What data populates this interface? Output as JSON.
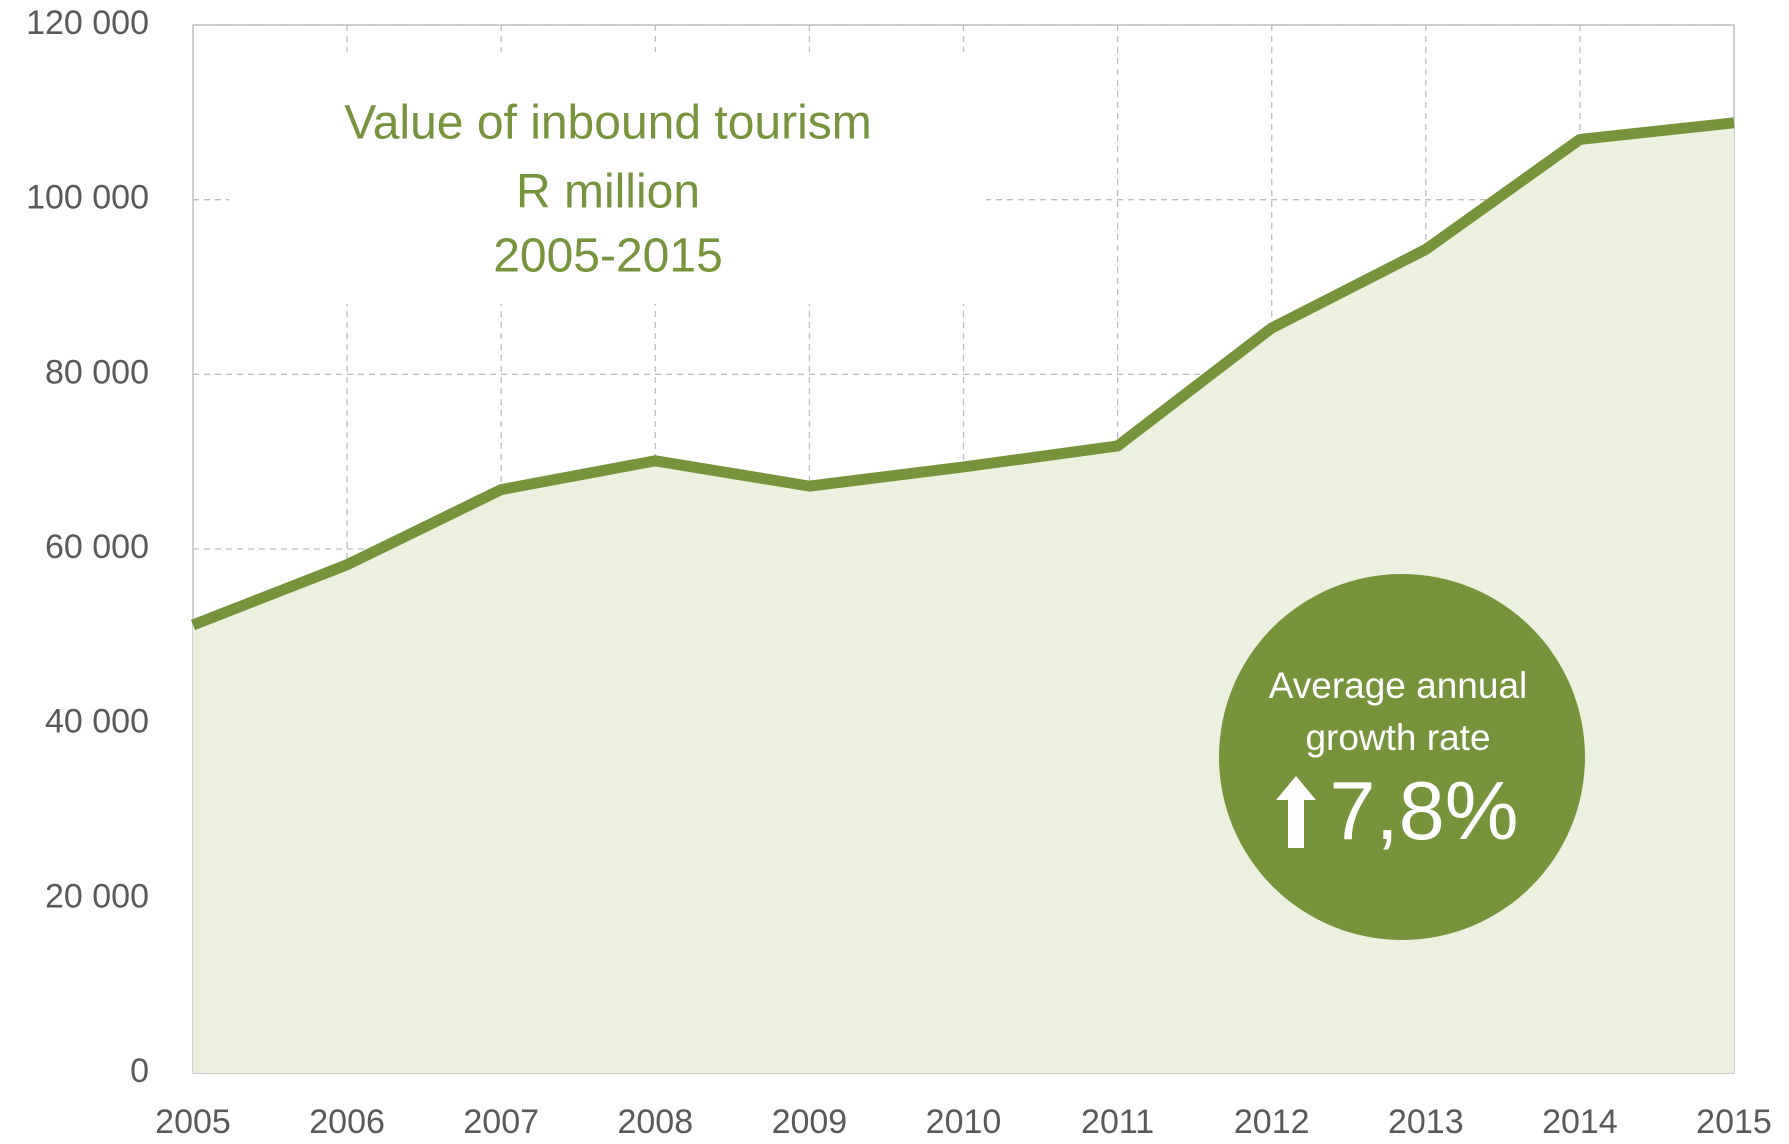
{
  "chart_data": {
    "type": "area",
    "title": [
      "Value of inbound tourism",
      "R million",
      "2005-2015"
    ],
    "categories": [
      "2005",
      "2006",
      "2007",
      "2008",
      "2009",
      "2010",
      "2011",
      "2012",
      "2013",
      "2014",
      "2015"
    ],
    "series": [
      {
        "color": "#77933c",
        "fill": "#ebf1de",
        "values": [
          51300,
          58200,
          66800,
          70100,
          67200,
          69400,
          71800,
          85300,
          94300,
          106900,
          108800
        ]
      }
    ],
    "ylim": [
      0,
      120000
    ],
    "yticks": [
      0,
      {
        "value": 20000,
        "label": "20 000"
      },
      {
        "value": 40000,
        "label": "40 000"
      },
      {
        "value": 60000,
        "label": "60 000"
      },
      {
        "value": 80000,
        "label": "80 000"
      },
      {
        "value": 100000,
        "label": "100 000"
      },
      {
        "value": 120000,
        "label": "120 000"
      }
    ],
    "grid": true,
    "annotation": {
      "lines": [
        "Average annual",
        "growth rate"
      ],
      "value": "7,8%",
      "color": "#77933c"
    }
  }
}
